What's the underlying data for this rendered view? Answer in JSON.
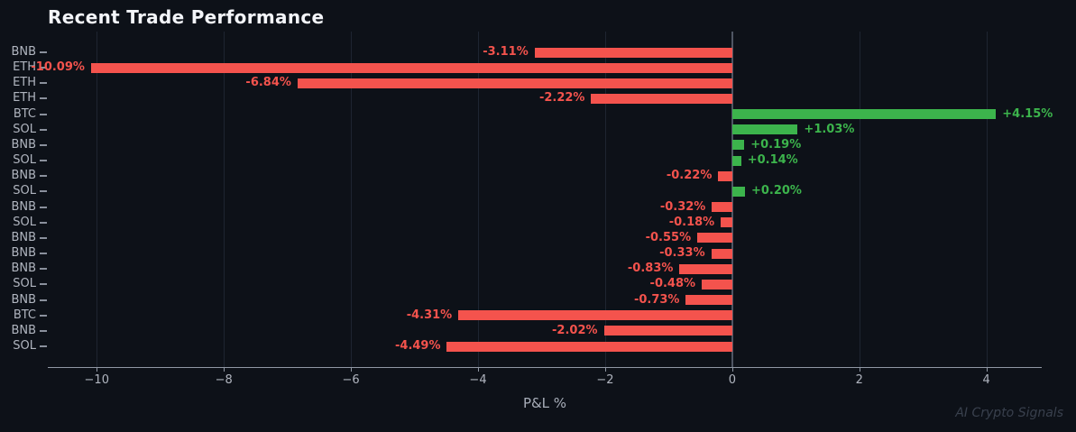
{
  "chart_data": {
    "type": "bar",
    "orientation": "horizontal",
    "title": "Recent Trade Performance",
    "xlabel": "P&L %",
    "watermark": "AI Crypto Signals",
    "categories": [
      "BNB",
      "ETH",
      "ETH",
      "ETH",
      "BTC",
      "SOL",
      "BNB",
      "SOL",
      "BNB",
      "SOL",
      "BNB",
      "SOL",
      "BNB",
      "BNB",
      "BNB",
      "SOL",
      "BNB",
      "BTC",
      "BNB",
      "SOL"
    ],
    "values": [
      -3.11,
      -10.09,
      -6.84,
      -2.22,
      4.15,
      1.03,
      0.19,
      0.14,
      -0.22,
      0.2,
      -0.32,
      -0.18,
      -0.55,
      -0.33,
      -0.83,
      -0.48,
      -0.73,
      -4.31,
      -2.02,
      -4.49
    ],
    "value_labels": [
      "-3.11%",
      "-10.09%",
      "-6.84%",
      "-2.22%",
      "+4.15%",
      "+1.03%",
      "+0.19%",
      "+0.14%",
      "-0.22%",
      "+0.20%",
      "-0.32%",
      "-0.18%",
      "-0.55%",
      "-0.33%",
      "-0.83%",
      "-0.48%",
      "-0.73%",
      "-4.31%",
      "-2.02%",
      "-4.49%"
    ],
    "x_ticks": [
      -10,
      -8,
      -6,
      -4,
      -2,
      0,
      2,
      4
    ],
    "x_tick_labels": [
      "−10",
      "−8",
      "−6",
      "−4",
      "−2",
      "0",
      "2",
      "4"
    ],
    "xlim": [
      -10.77,
      4.87
    ],
    "grid": "vertical",
    "legend": "none",
    "colors": {
      "positive": "#3cb44c",
      "negative": "#f4534d",
      "background": "#0d1118",
      "title": "#f3f5f9",
      "axis_line": "#9098a4",
      "tick_label": "#b0b5bf",
      "gridline": "#1e2531",
      "zero_line": "#4f5663",
      "watermark": "#39404d"
    }
  }
}
